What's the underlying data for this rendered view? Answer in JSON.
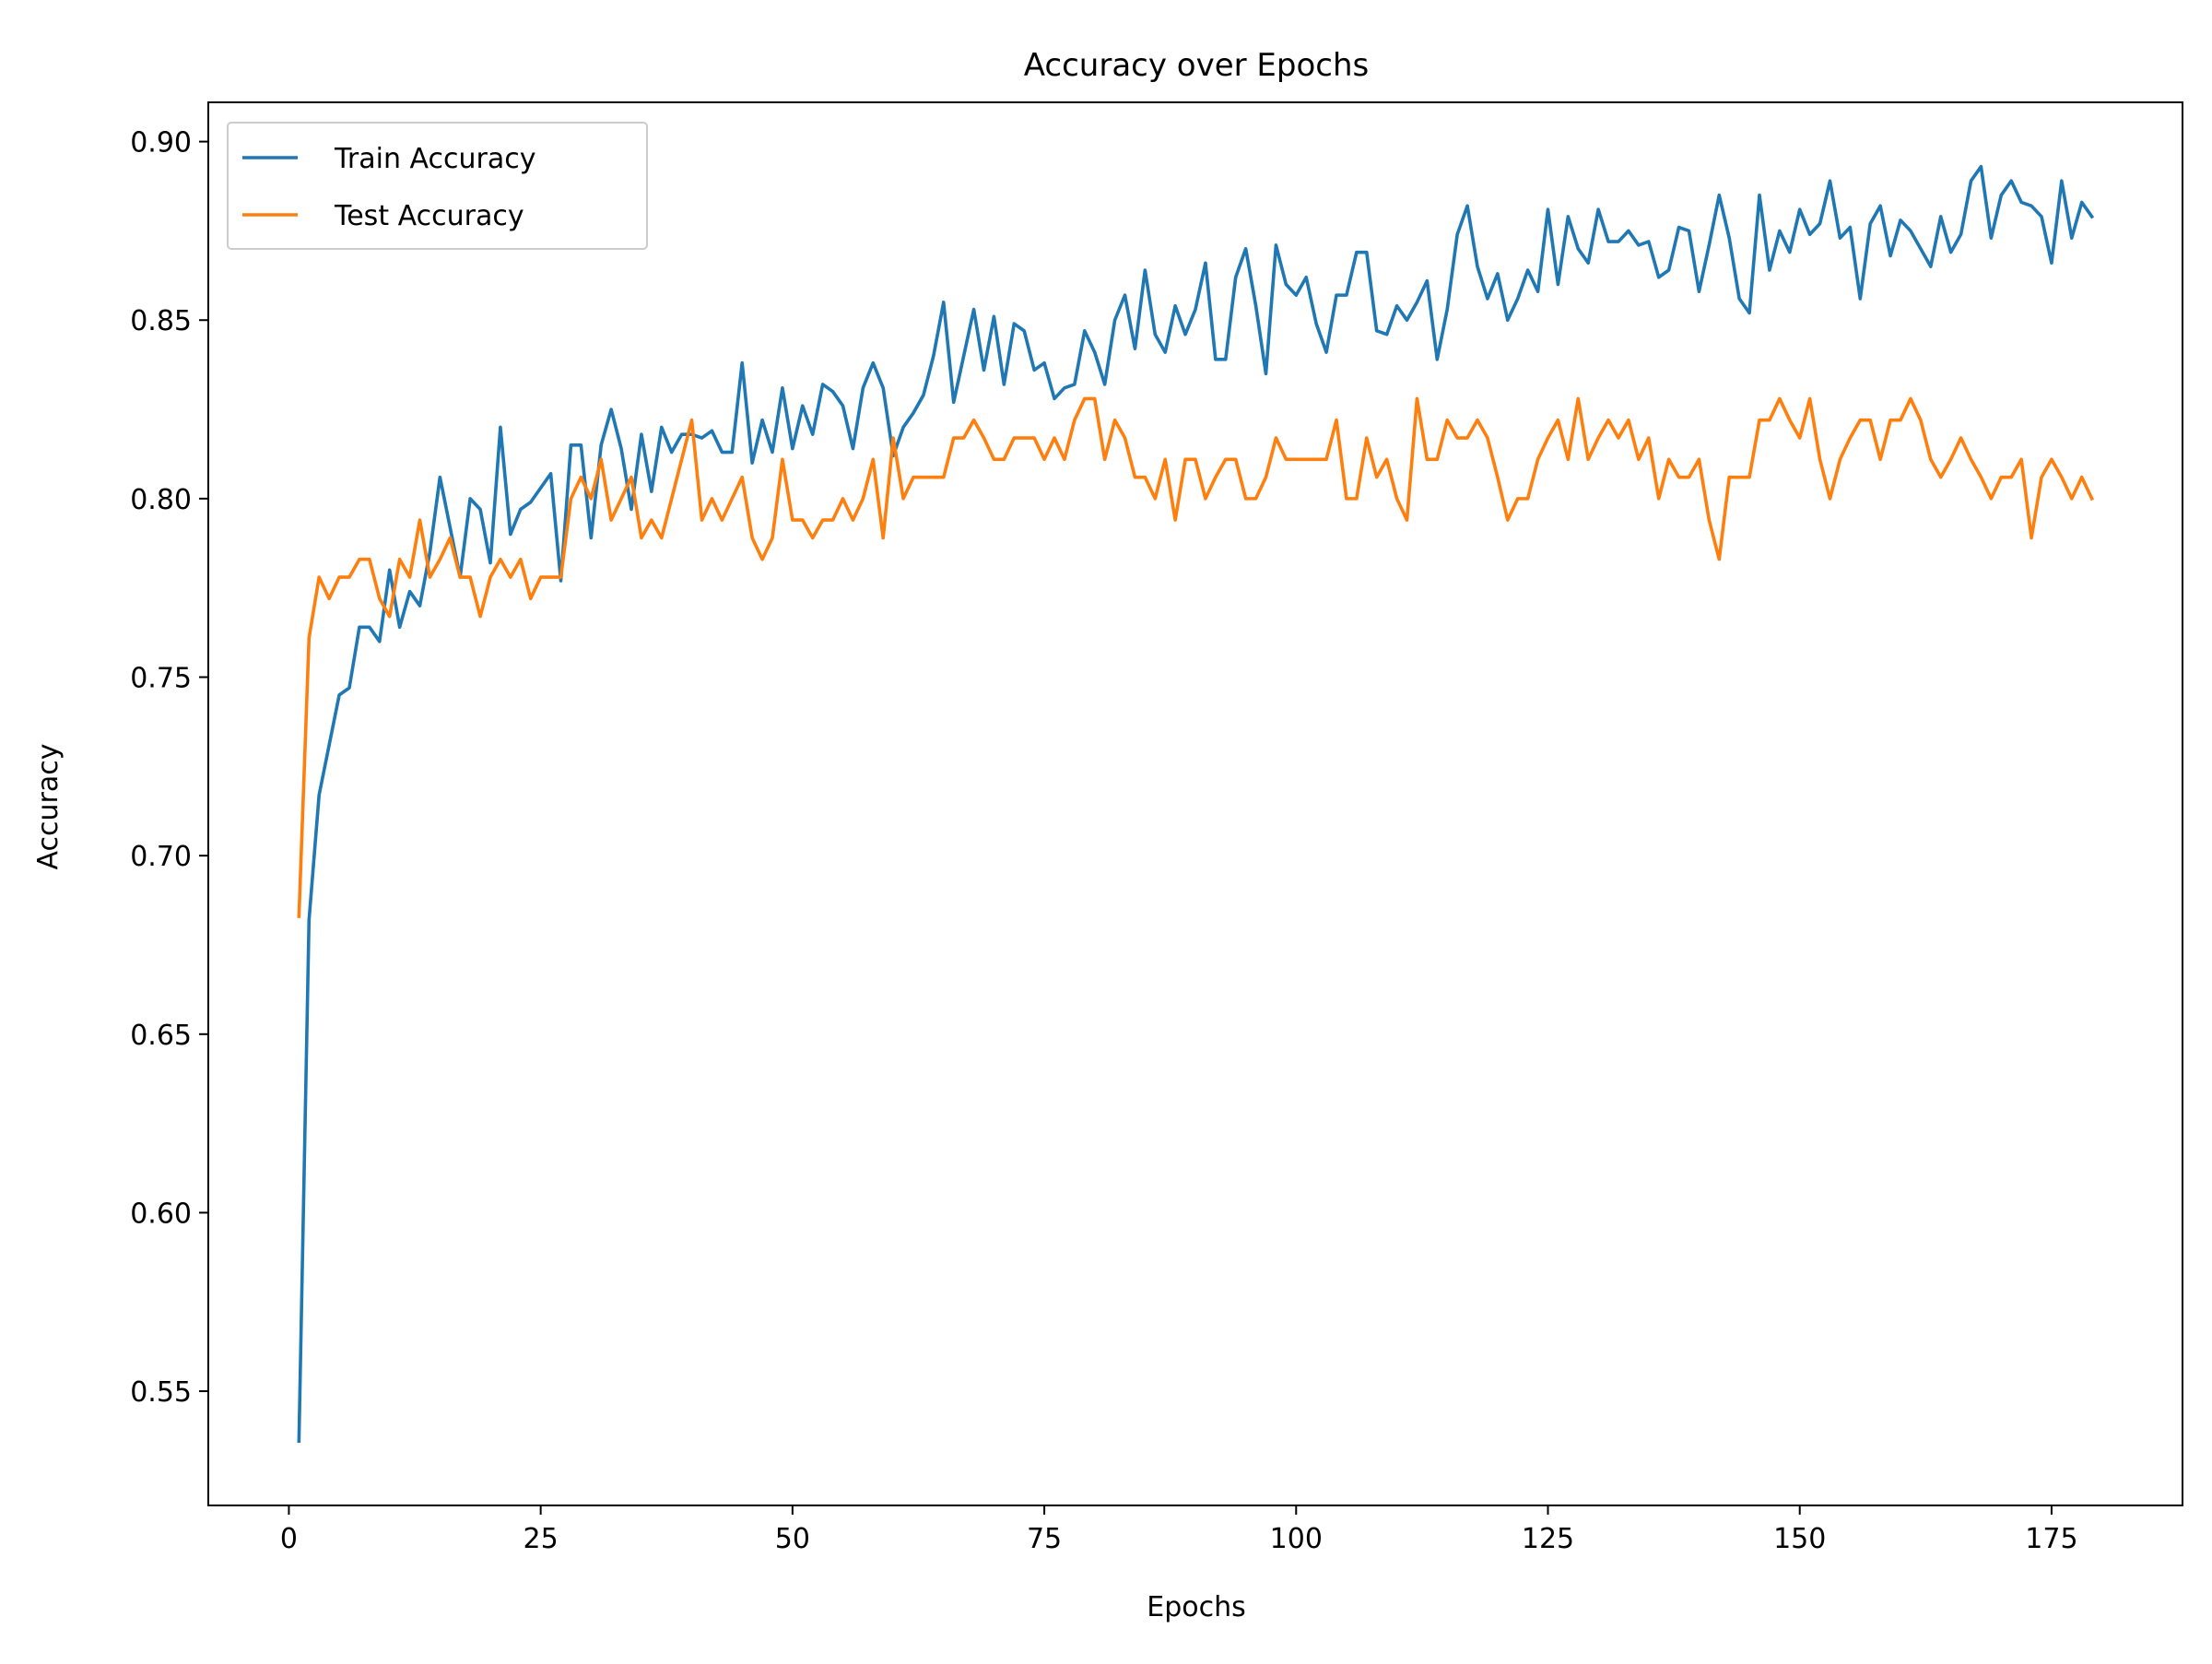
{
  "chart_data": {
    "type": "line",
    "title": "Accuracy over Epochs",
    "xlabel": "Epochs",
    "ylabel": "Accuracy",
    "xlim": [
      -8,
      188
    ],
    "ylim": [
      0.518,
      0.911
    ],
    "xticks": [
      0,
      25,
      50,
      75,
      100,
      125,
      150,
      175
    ],
    "yticks": [
      0.55,
      0.6,
      0.65,
      0.7,
      0.75,
      0.8,
      0.85,
      0.9
    ],
    "xtick_labels": [
      "0",
      "25",
      "50",
      "75",
      "100",
      "125",
      "150",
      "175"
    ],
    "ytick_labels": [
      "0.55",
      "0.60",
      "0.65",
      "0.70",
      "0.75",
      "0.80",
      "0.85",
      "0.90"
    ],
    "grid": false,
    "legend": "upper-left",
    "x_start": 1,
    "x_step": 1,
    "series": [
      {
        "name": "Train Accuracy",
        "color": "#1f77b4",
        "values": [
          0.536,
          0.682,
          0.717,
          0.731,
          0.745,
          0.747,
          0.764,
          0.764,
          0.76,
          0.78,
          0.764,
          0.774,
          0.77,
          0.785,
          0.806,
          0.792,
          0.778,
          0.8,
          0.797,
          0.782,
          0.82,
          0.79,
          0.797,
          0.799,
          0.803,
          0.807,
          0.777,
          0.815,
          0.815,
          0.789,
          0.815,
          0.825,
          0.814,
          0.797,
          0.818,
          0.802,
          0.82,
          0.813,
          0.818,
          0.818,
          0.817,
          0.819,
          0.813,
          0.813,
          0.838,
          0.81,
          0.822,
          0.813,
          0.831,
          0.814,
          0.826,
          0.818,
          0.832,
          0.83,
          0.826,
          0.814,
          0.831,
          0.838,
          0.831,
          0.812,
          0.82,
          0.824,
          0.829,
          0.84,
          0.855,
          0.827,
          0.84,
          0.853,
          0.836,
          0.851,
          0.832,
          0.849,
          0.847,
          0.836,
          0.838,
          0.828,
          0.831,
          0.832,
          0.847,
          0.841,
          0.832,
          0.85,
          0.857,
          0.842,
          0.864,
          0.846,
          0.841,
          0.854,
          0.846,
          0.853,
          0.866,
          0.839,
          0.839,
          0.862,
          0.87,
          0.854,
          0.835,
          0.871,
          0.86,
          0.857,
          0.862,
          0.849,
          0.841,
          0.857,
          0.857,
          0.869,
          0.869,
          0.847,
          0.846,
          0.854,
          0.85,
          0.855,
          0.861,
          0.839,
          0.853,
          0.874,
          0.882,
          0.865,
          0.856,
          0.863,
          0.85,
          0.856,
          0.864,
          0.858,
          0.881,
          0.86,
          0.879,
          0.87,
          0.866,
          0.881,
          0.872,
          0.872,
          0.875,
          0.871,
          0.872,
          0.862,
          0.864,
          0.876,
          0.875,
          0.858,
          0.871,
          0.885,
          0.873,
          0.856,
          0.852,
          0.885,
          0.864,
          0.875,
          0.869,
          0.881,
          0.874,
          0.877,
          0.889,
          0.873,
          0.876,
          0.856,
          0.877,
          0.882,
          0.868,
          0.878,
          0.875,
          0.87,
          0.865,
          0.879,
          0.869,
          0.874,
          0.889,
          0.893,
          0.873,
          0.885,
          0.889,
          0.883,
          0.882,
          0.879,
          0.866,
          0.889,
          0.873,
          0.883,
          0.879
        ]
      },
      {
        "name": "Test Accuracy",
        "color": "#ff7f0e",
        "values": [
          0.683,
          0.761,
          0.778,
          0.772,
          0.778,
          0.778,
          0.783,
          0.783,
          0.772,
          0.767,
          0.783,
          0.778,
          0.794,
          0.778,
          0.783,
          0.789,
          0.778,
          0.778,
          0.767,
          0.778,
          0.783,
          0.778,
          0.783,
          0.772,
          0.778,
          0.778,
          0.778,
          0.8,
          0.806,
          0.8,
          0.811,
          0.794,
          0.8,
          0.806,
          0.789,
          0.794,
          0.789,
          0.8,
          0.811,
          0.822,
          0.794,
          0.8,
          0.794,
          0.8,
          0.806,
          0.789,
          0.783,
          0.789,
          0.811,
          0.794,
          0.794,
          0.789,
          0.794,
          0.794,
          0.8,
          0.794,
          0.8,
          0.811,
          0.789,
          0.817,
          0.8,
          0.806,
          0.806,
          0.806,
          0.806,
          0.817,
          0.817,
          0.822,
          0.817,
          0.811,
          0.811,
          0.817,
          0.817,
          0.817,
          0.811,
          0.817,
          0.811,
          0.822,
          0.828,
          0.828,
          0.811,
          0.822,
          0.817,
          0.806,
          0.806,
          0.8,
          0.811,
          0.794,
          0.811,
          0.811,
          0.8,
          0.806,
          0.811,
          0.811,
          0.8,
          0.8,
          0.806,
          0.817,
          0.811,
          0.811,
          0.811,
          0.811,
          0.811,
          0.822,
          0.8,
          0.8,
          0.817,
          0.806,
          0.811,
          0.8,
          0.794,
          0.828,
          0.811,
          0.811,
          0.822,
          0.817,
          0.817,
          0.822,
          0.817,
          0.806,
          0.794,
          0.8,
          0.8,
          0.811,
          0.817,
          0.822,
          0.811,
          0.828,
          0.811,
          0.817,
          0.822,
          0.817,
          0.822,
          0.811,
          0.817,
          0.8,
          0.811,
          0.806,
          0.806,
          0.811,
          0.794,
          0.783,
          0.806,
          0.806,
          0.806,
          0.822,
          0.822,
          0.828,
          0.822,
          0.817,
          0.828,
          0.811,
          0.8,
          0.811,
          0.817,
          0.822,
          0.822,
          0.811,
          0.822,
          0.822,
          0.828,
          0.822,
          0.811,
          0.806,
          0.811,
          0.817,
          0.811,
          0.806,
          0.8,
          0.806,
          0.806,
          0.811,
          0.789,
          0.806,
          0.811,
          0.806,
          0.8,
          0.806,
          0.8
        ]
      }
    ]
  }
}
